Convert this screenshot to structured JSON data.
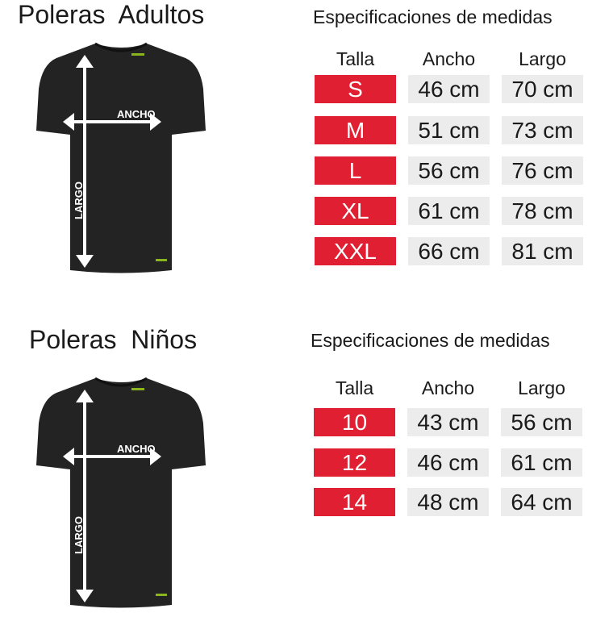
{
  "adults": {
    "title": "Poleras  Adultos",
    "spec_title": "Especificaciones de medidas",
    "headers": [
      "Talla",
      "Ancho",
      "Largo"
    ],
    "rows": [
      {
        "size": "S",
        "ancho": "46 cm",
        "largo": "70 cm"
      },
      {
        "size": "M",
        "ancho": "51 cm",
        "largo": "73 cm"
      },
      {
        "size": "L",
        "ancho": "56 cm",
        "largo": "76 cm"
      },
      {
        "size": "XL",
        "ancho": "61 cm",
        "largo": "78 cm"
      },
      {
        "size": "XXL",
        "ancho": "66 cm",
        "largo": "81 cm"
      }
    ],
    "shirt": {
      "width_label": "ANCHO",
      "length_label": "LARGO"
    }
  },
  "kids": {
    "title": "Poleras  Niños",
    "spec_title": "Especificaciones de medidas",
    "headers": [
      "Talla",
      "Ancho",
      "Largo"
    ],
    "rows": [
      {
        "size": "10",
        "ancho": "43 cm",
        "largo": "56 cm"
      },
      {
        "size": "12",
        "ancho": "46 cm",
        "largo": "61 cm"
      },
      {
        "size": "14",
        "ancho": "48 cm",
        "largo": "64 cm"
      }
    ],
    "shirt": {
      "width_label": "ANCHO",
      "length_label": "LARGO"
    }
  },
  "colors": {
    "size_bg": "#e02032",
    "value_bg": "#ececec",
    "shirt": "#232323",
    "logo": "#8ab51e"
  }
}
